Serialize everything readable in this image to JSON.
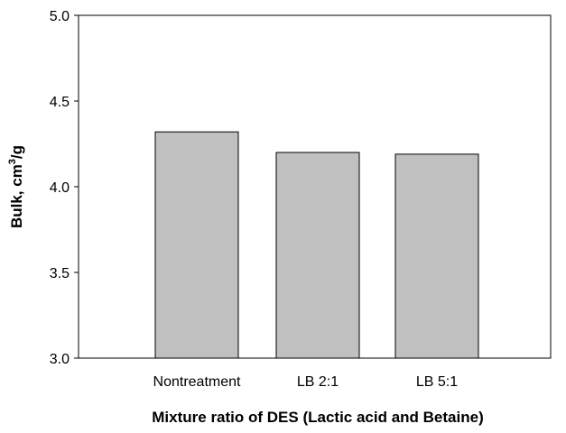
{
  "chart_data": {
    "type": "bar",
    "title": "",
    "categories": [
      "Nontreatment",
      "LB 2:1",
      "LB 5:1"
    ],
    "values": [
      4.32,
      4.2,
      4.19
    ],
    "xlabel": "Mixture ratio of DES (Lactic acid and Betaine)",
    "ylabel": "Bulk, cm³/g",
    "ylabel_parts": {
      "base": "Bulk, cm",
      "sup": "3",
      "tail": "/g"
    },
    "ylim": [
      3.0,
      5.0
    ],
    "yticks": [
      "3.0",
      "3.5",
      "4.0",
      "4.5",
      "5.0"
    ],
    "ytick_values": [
      3.0,
      3.5,
      4.0,
      4.5,
      5.0
    ],
    "bar_color": "#c0c0c0",
    "grid": false,
    "legend": "none"
  }
}
